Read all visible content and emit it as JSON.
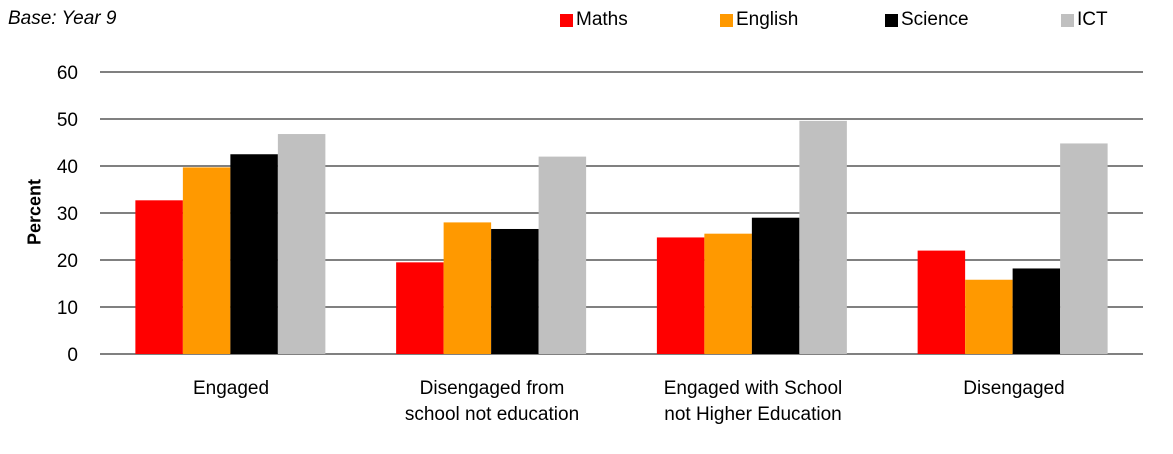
{
  "note": "Base: Year 9",
  "chart_data": {
    "type": "bar",
    "categories": [
      "Engaged",
      "Disengaged from school not education",
      "Engaged with School not Higher Education",
      "Disengaged"
    ],
    "category_lines": [
      [
        "Engaged"
      ],
      [
        "Disengaged from",
        "school not education"
      ],
      [
        "Engaged with School",
        "not Higher Education"
      ],
      [
        "Disengaged"
      ]
    ],
    "series": [
      {
        "name": "Maths",
        "color": "#ff0000",
        "values": [
          32.7,
          19.5,
          24.8,
          22.0
        ]
      },
      {
        "name": "English",
        "color": "#ff9900",
        "values": [
          39.7,
          28.0,
          25.6,
          15.8
        ]
      },
      {
        "name": "Science",
        "color": "#000000",
        "values": [
          42.5,
          26.6,
          29.0,
          18.2
        ]
      },
      {
        "name": "ICT",
        "color": "#c0c0c0",
        "values": [
          46.8,
          42.0,
          49.6,
          44.8
        ]
      }
    ],
    "xlabel": "",
    "ylabel": "Percent",
    "ylim": [
      0,
      60
    ],
    "yticks": [
      0,
      10,
      20,
      30,
      40,
      50,
      60
    ],
    "grid": true,
    "legend_position": "top-right"
  }
}
